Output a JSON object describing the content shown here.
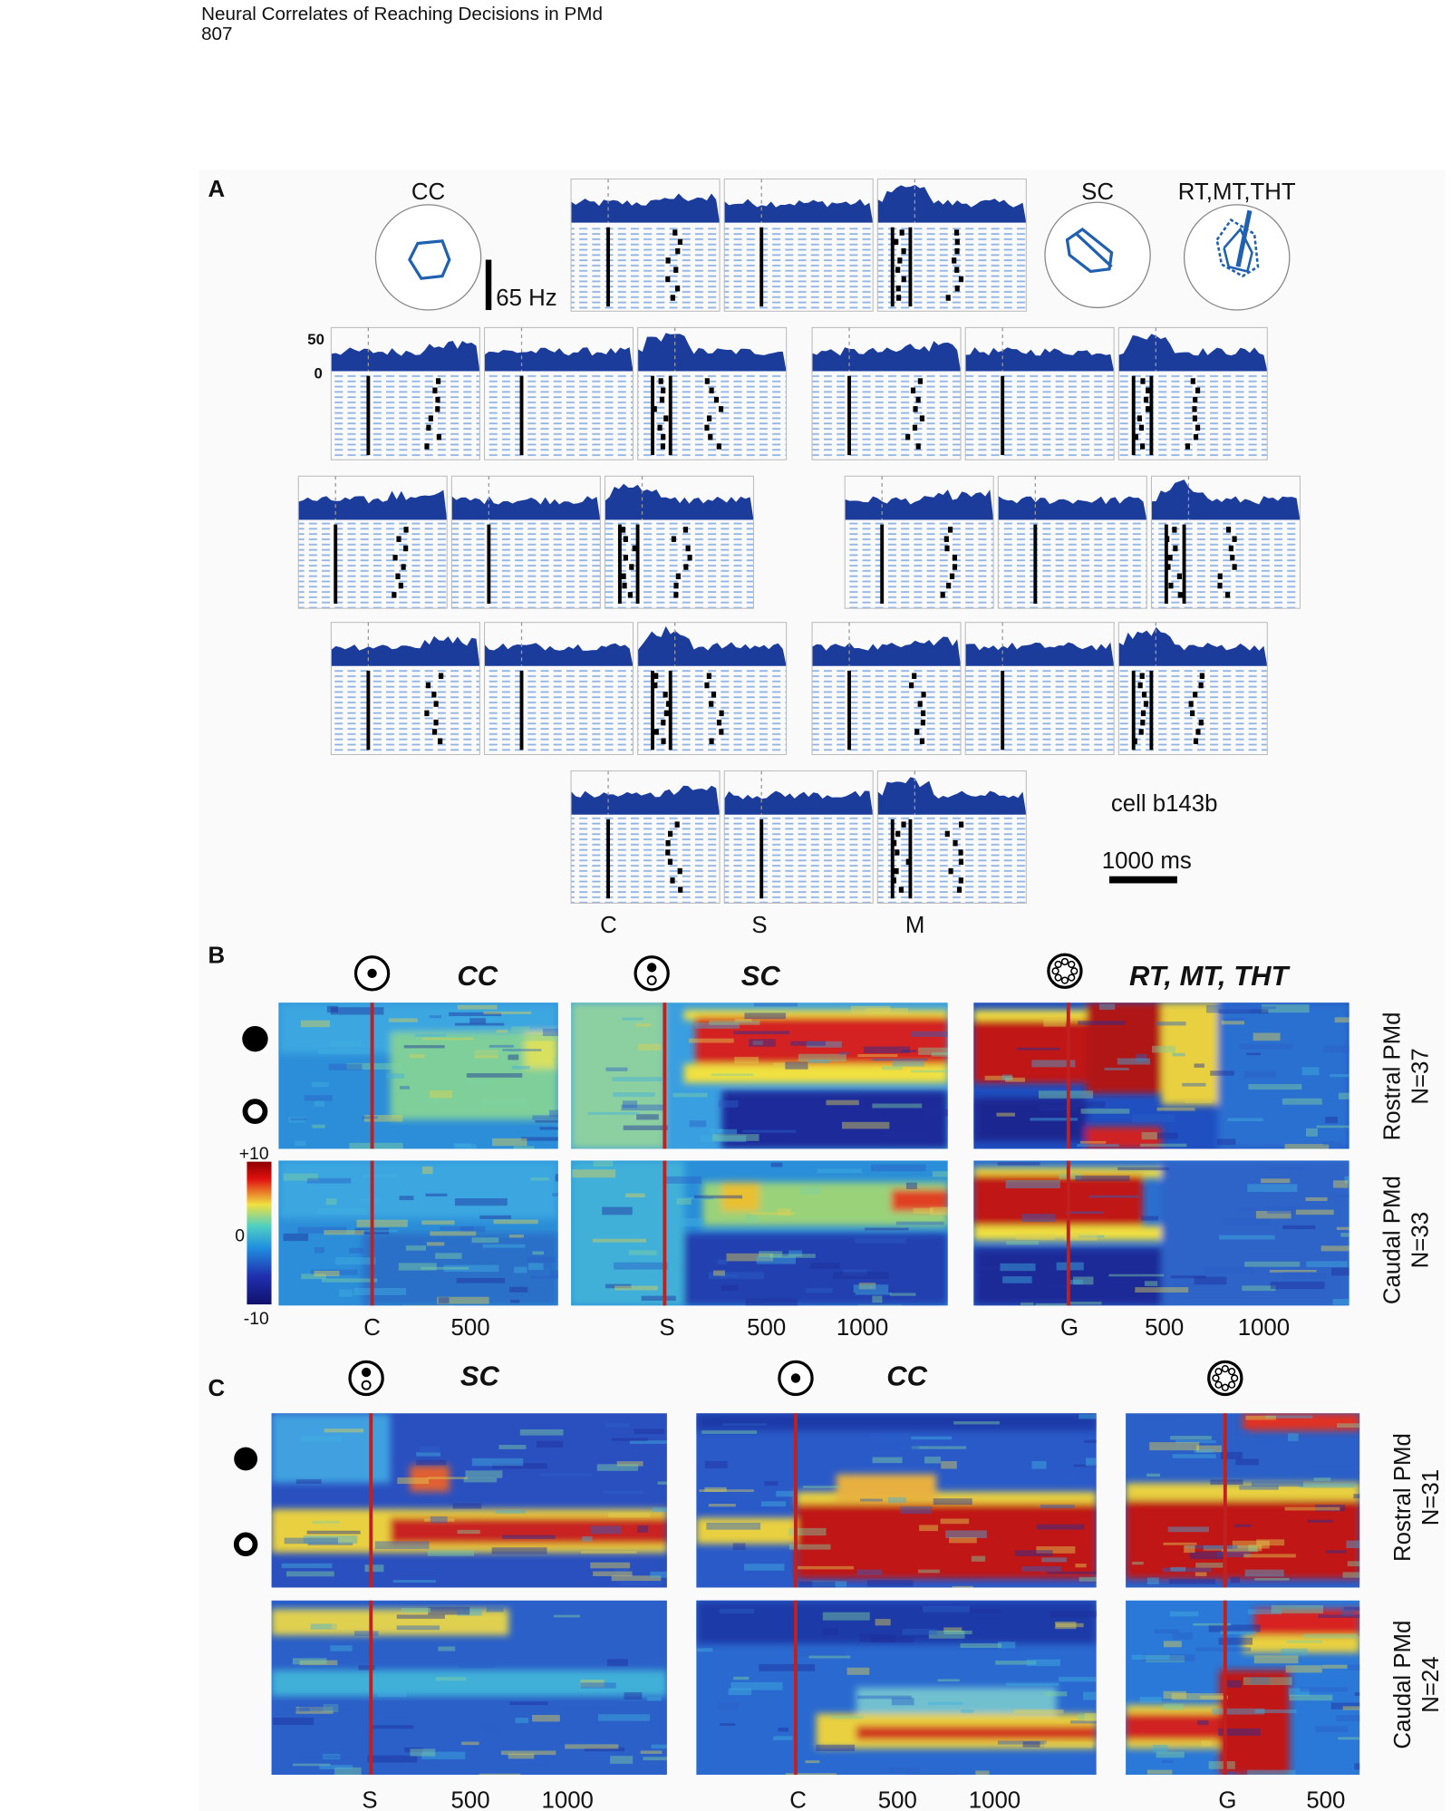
{
  "header": {
    "title": "Neural Correlates of Reaching Decisions in PMd",
    "page": "807"
  },
  "panel_a": {
    "label": "A",
    "conditions": [
      "CC",
      "SC",
      "RT,MT,THT"
    ],
    "rate_scale": "65 Hz",
    "psth_ticks": [
      "50",
      "0"
    ],
    "cell": "cell b143b",
    "time_scale": "1000 ms",
    "events": [
      "C",
      "S",
      "M"
    ]
  },
  "panel_b": {
    "label": "B",
    "columns": [
      {
        "title": "CC",
        "x_labels": [
          "C",
          "500"
        ]
      },
      {
        "title": "SC",
        "x_labels": [
          "S",
          "500",
          "1000"
        ]
      },
      {
        "title": "RT, MT, THT",
        "x_labels": [
          "G",
          "500",
          "1000"
        ]
      }
    ],
    "rows": [
      {
        "area": "Rostral PMd",
        "n": "N=37"
      },
      {
        "area": "Caudal PMd",
        "n": "N=33"
      }
    ],
    "colorbar": [
      "+10",
      "0",
      "-10"
    ]
  },
  "panel_c": {
    "label": "C",
    "columns": [
      {
        "title": "SC",
        "x_labels": [
          "S",
          "500",
          "1000"
        ]
      },
      {
        "title": "CC",
        "x_labels": [
          "C",
          "500",
          "1000"
        ]
      },
      {
        "x_labels": [
          "G",
          "500"
        ]
      }
    ],
    "rows": [
      {
        "area": "Rostral PMd",
        "n": "N=31"
      },
      {
        "area": "Caudal PMd",
        "n": "N=24"
      }
    ]
  }
}
